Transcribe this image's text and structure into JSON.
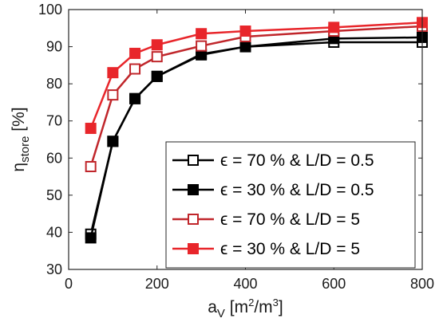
{
  "chart_data": {
    "type": "line",
    "xlabel": {
      "base": "a",
      "sub": "V",
      "after_sub": " [m",
      "sup1": "2",
      "mid": "/m",
      "sup2": "3",
      "close": "]"
    },
    "ylabel": {
      "base": "η",
      "sub": "store",
      "unit": " [%]"
    },
    "xlim": [
      0,
      800
    ],
    "ylim": [
      30,
      100
    ],
    "xticks": [
      0,
      200,
      400,
      600,
      800
    ],
    "yticks": [
      30,
      40,
      50,
      60,
      70,
      80,
      90,
      100
    ],
    "grid": false,
    "legend_position": "bottom-right",
    "x": [
      50,
      100,
      150,
      200,
      300,
      400,
      600,
      800
    ],
    "series": [
      {
        "name": "ϵ = 70 % & L/D = 0.5",
        "color": "#000000",
        "marker": "square-open",
        "values": [
          39.5,
          64.5,
          76,
          82,
          88,
          90,
          91.2,
          91.2
        ]
      },
      {
        "name": "ϵ = 30 % & L/D = 0.5",
        "color": "#000000",
        "marker": "square-filled",
        "values": [
          38.5,
          64.5,
          76,
          82,
          87.8,
          90,
          92.2,
          92.5
        ]
      },
      {
        "name": "ϵ = 70 % & L/D = 5",
        "color": "#c0262b",
        "marker": "square-open",
        "values": [
          57.7,
          77,
          84,
          87.3,
          90.2,
          92.7,
          94.2,
          95.5
        ]
      },
      {
        "name": "ϵ = 30 % & L/D = 5",
        "color": "#e8262b",
        "marker": "square-filled",
        "values": [
          68,
          83,
          88.2,
          90.5,
          93.5,
          94.2,
          95.2,
          96.5
        ]
      }
    ]
  }
}
